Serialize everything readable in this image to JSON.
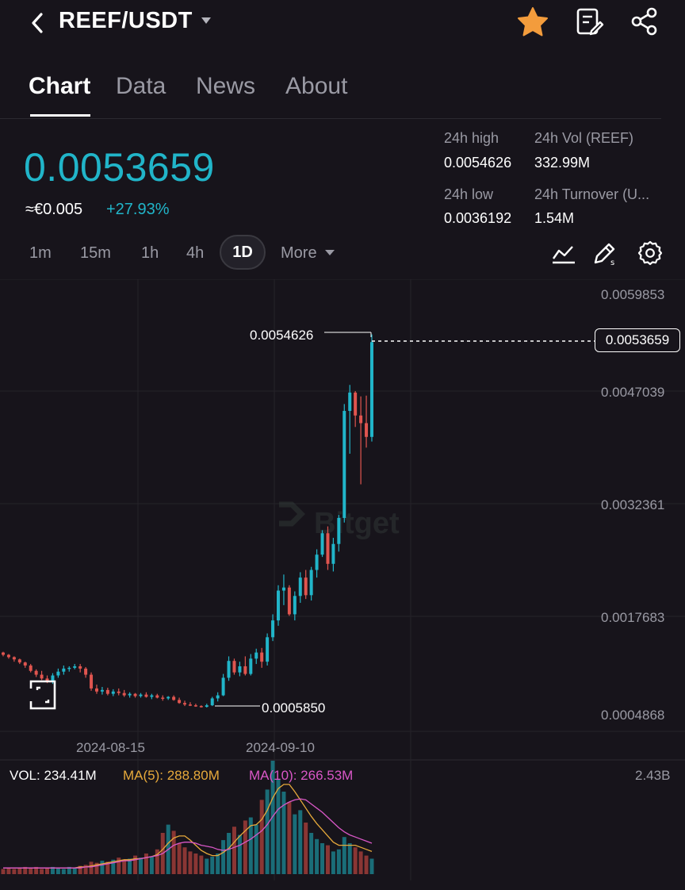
{
  "header": {
    "pair": "REEF/USDT",
    "icons": [
      "back-arrow-icon",
      "dropdown-caret-icon",
      "favorite-star-icon",
      "notes-icon",
      "share-icon"
    ],
    "star_color": "#f39c3c"
  },
  "tabs": [
    {
      "label": "Chart",
      "active": true
    },
    {
      "label": "Data",
      "active": false
    },
    {
      "label": "News",
      "active": false
    },
    {
      "label": "About",
      "active": false
    }
  ],
  "ticker": {
    "last_price": "0.0053659",
    "fiat": "≈€0.005",
    "change": "+27.93%",
    "high_label": "24h high",
    "high_value": "0.0054626",
    "low_label": "24h low",
    "low_value": "0.0036192",
    "vol_label": "24h Vol (REEF)",
    "vol_value": "332.99M",
    "turnover_label": "24h Turnover (U...",
    "turnover_value": "1.54M"
  },
  "timeframes": {
    "items": [
      "1m",
      "15m",
      "1h",
      "4h"
    ],
    "active": "1D",
    "more": "More"
  },
  "chart_data": {
    "type": "candlestick",
    "y_axis_labels": [
      "0.0059853",
      "0.0047039",
      "0.0032361",
      "0.0017683",
      "0.0004868"
    ],
    "x_axis_labels": [
      "2024-08-15",
      "2024-09-10"
    ],
    "current_price_label": "0.0053659",
    "high_marker": "0.0054626",
    "low_marker": "0.0005850",
    "watermark": "Bitget",
    "up_color": "#21b5c9",
    "down_color": "#e0554f",
    "candles": [
      [
        0.0013,
        0.00131,
        0.00125,
        0.00127
      ],
      [
        0.00127,
        0.00128,
        0.00122,
        0.00124
      ],
      [
        0.00124,
        0.00125,
        0.00118,
        0.00121
      ],
      [
        0.00121,
        0.00122,
        0.00115,
        0.00117
      ],
      [
        0.00117,
        0.00118,
        0.0011,
        0.00113
      ],
      [
        0.00113,
        0.00115,
        0.00104,
        0.00106
      ],
      [
        0.00106,
        0.00108,
        0.00098,
        0.00101
      ],
      [
        0.00101,
        0.00106,
        0.00094,
        0.00096
      ],
      [
        0.00096,
        0.001,
        0.0009,
        0.00092
      ],
      [
        0.00092,
        0.00103,
        0.00089,
        0.001
      ],
      [
        0.001,
        0.00109,
        0.00097,
        0.00105
      ],
      [
        0.00105,
        0.00113,
        0.00101,
        0.00109
      ],
      [
        0.00109,
        0.00112,
        0.00105,
        0.0011
      ],
      [
        0.0011,
        0.00115,
        0.00108,
        0.00112
      ],
      [
        0.00112,
        0.00115,
        0.00104,
        0.00109
      ],
      [
        0.00109,
        0.00111,
        0.00097,
        0.00101
      ],
      [
        0.00101,
        0.00104,
        0.0008,
        0.00083
      ],
      [
        0.00083,
        0.00088,
        0.00076,
        0.00079
      ],
      [
        0.00079,
        0.00085,
        0.00075,
        0.00081
      ],
      [
        0.00081,
        0.00084,
        0.00074,
        0.00076
      ],
      [
        0.00076,
        0.00082,
        0.00073,
        0.00079
      ],
      [
        0.00079,
        0.00083,
        0.00074,
        0.00077
      ],
      [
        0.00077,
        0.00081,
        0.00072,
        0.00074
      ],
      [
        0.00074,
        0.00078,
        0.00071,
        0.00076
      ],
      [
        0.00076,
        0.00077,
        0.00071,
        0.00073
      ],
      [
        0.00073,
        0.00077,
        0.00071,
        0.00075
      ],
      [
        0.00075,
        0.00078,
        0.00071,
        0.00072
      ],
      [
        0.00072,
        0.00076,
        0.00069,
        0.00074
      ],
      [
        0.00074,
        0.00076,
        0.0007,
        0.00071
      ],
      [
        0.00071,
        0.00074,
        0.00067,
        0.0007
      ],
      [
        0.0007,
        0.00073,
        0.00068,
        0.00072
      ],
      [
        0.00072,
        0.00074,
        0.00067,
        0.00068
      ],
      [
        0.00068,
        0.00071,
        0.00063,
        0.00064
      ],
      [
        0.00064,
        0.00067,
        0.0006,
        0.00062
      ],
      [
        0.00062,
        0.00065,
        0.0006,
        0.00061
      ],
      [
        0.00061,
        0.00063,
        0.00059,
        0.0006
      ],
      [
        0.0006,
        0.00061,
        0.00058,
        0.00059
      ],
      [
        0.00059,
        0.00063,
        0.00058,
        0.00061
      ],
      [
        0.00061,
        0.00072,
        0.0006,
        0.0007
      ],
      [
        0.0007,
        0.00078,
        0.00066,
        0.00074
      ],
      [
        0.00074,
        0.00102,
        0.00073,
        0.00097
      ],
      [
        0.00097,
        0.00125,
        0.00093,
        0.00119
      ],
      [
        0.00119,
        0.00122,
        0.00101,
        0.00104
      ],
      [
        0.00104,
        0.00118,
        0.00099,
        0.00112
      ],
      [
        0.00112,
        0.00125,
        0.001,
        0.00102
      ],
      [
        0.00102,
        0.00128,
        0.001,
        0.00122
      ],
      [
        0.00122,
        0.00135,
        0.00115,
        0.0013
      ],
      [
        0.0013,
        0.00136,
        0.0011,
        0.00118
      ],
      [
        0.00118,
        0.00155,
        0.00113,
        0.0015
      ],
      [
        0.0015,
        0.0018,
        0.00145,
        0.00172
      ],
      [
        0.00172,
        0.00218,
        0.00165,
        0.00211
      ],
      [
        0.00211,
        0.00232,
        0.00192,
        0.00215
      ],
      [
        0.00215,
        0.00218,
        0.00178,
        0.0018
      ],
      [
        0.0018,
        0.0021,
        0.00172,
        0.00204
      ],
      [
        0.00204,
        0.00235,
        0.00195,
        0.00228
      ],
      [
        0.00228,
        0.00238,
        0.002,
        0.00205
      ],
      [
        0.00205,
        0.00242,
        0.00198,
        0.00238
      ],
      [
        0.00238,
        0.00265,
        0.00228,
        0.00258
      ],
      [
        0.00258,
        0.0029,
        0.00255,
        0.00286
      ],
      [
        0.00286,
        0.00295,
        0.00238,
        0.00246
      ],
      [
        0.00246,
        0.0028,
        0.00236,
        0.00272
      ],
      [
        0.00272,
        0.0031,
        0.00262,
        0.00306
      ],
      [
        0.00306,
        0.00455,
        0.003,
        0.00446
      ],
      [
        0.00446,
        0.0048,
        0.0039,
        0.0047
      ],
      [
        0.0047,
        0.00472,
        0.00425,
        0.0044
      ],
      [
        0.0044,
        0.00465,
        0.0035,
        0.0043
      ],
      [
        0.0043,
        0.00466,
        0.00398,
        0.00412
      ],
      [
        0.00412,
        0.00546,
        0.00406,
        0.00536
      ]
    ]
  },
  "volume": {
    "vol_label": "VOL: 234.41M",
    "ma5_label": "MA(5): 288.80M",
    "ma10_label": "MA(10): 266.53M",
    "max_label": "2.43B",
    "ma5_color": "#e6a93b",
    "ma10_color": "#d957c7",
    "values": [
      0.05,
      0.06,
      0.05,
      0.06,
      0.07,
      0.06,
      0.07,
      0.05,
      0.06,
      0.07,
      0.06,
      0.05,
      0.07,
      0.06,
      0.08,
      0.09,
      0.12,
      0.11,
      0.13,
      0.12,
      0.14,
      0.16,
      0.14,
      0.15,
      0.18,
      0.16,
      0.2,
      0.17,
      0.24,
      0.4,
      0.48,
      0.42,
      0.3,
      0.26,
      0.22,
      0.2,
      0.18,
      0.15,
      0.17,
      0.2,
      0.33,
      0.4,
      0.46,
      0.38,
      0.52,
      0.55,
      0.48,
      0.72,
      0.82,
      1.1,
      0.92,
      0.8,
      0.7,
      0.58,
      0.62,
      0.5,
      0.4,
      0.34,
      0.3,
      0.28,
      0.22,
      0.24,
      0.36,
      0.3,
      0.26,
      0.22,
      0.18,
      0.15
    ],
    "ma5": [
      0.06,
      0.06,
      0.06,
      0.06,
      0.06,
      0.06,
      0.06,
      0.06,
      0.06,
      0.06,
      0.06,
      0.06,
      0.06,
      0.06,
      0.07,
      0.07,
      0.08,
      0.09,
      0.1,
      0.11,
      0.12,
      0.13,
      0.14,
      0.14,
      0.15,
      0.15,
      0.16,
      0.17,
      0.19,
      0.24,
      0.3,
      0.35,
      0.37,
      0.37,
      0.33,
      0.28,
      0.23,
      0.2,
      0.18,
      0.18,
      0.21,
      0.25,
      0.31,
      0.37,
      0.42,
      0.47,
      0.48,
      0.53,
      0.62,
      0.74,
      0.83,
      0.87,
      0.87,
      0.8,
      0.72,
      0.64,
      0.56,
      0.49,
      0.43,
      0.37,
      0.31,
      0.28,
      0.28,
      0.28,
      0.28,
      0.26,
      0.24,
      0.22
    ],
    "ma10": [
      0.06,
      0.06,
      0.06,
      0.06,
      0.06,
      0.06,
      0.06,
      0.06,
      0.06,
      0.06,
      0.06,
      0.06,
      0.06,
      0.06,
      0.06,
      0.07,
      0.07,
      0.08,
      0.09,
      0.1,
      0.11,
      0.12,
      0.13,
      0.13,
      0.14,
      0.15,
      0.16,
      0.17,
      0.18,
      0.2,
      0.24,
      0.28,
      0.3,
      0.31,
      0.31,
      0.3,
      0.28,
      0.27,
      0.26,
      0.24,
      0.23,
      0.24,
      0.26,
      0.28,
      0.31,
      0.34,
      0.38,
      0.42,
      0.48,
      0.56,
      0.63,
      0.67,
      0.7,
      0.72,
      0.73,
      0.72,
      0.68,
      0.64,
      0.6,
      0.55,
      0.5,
      0.45,
      0.41,
      0.38,
      0.36,
      0.34,
      0.32,
      0.3
    ]
  }
}
